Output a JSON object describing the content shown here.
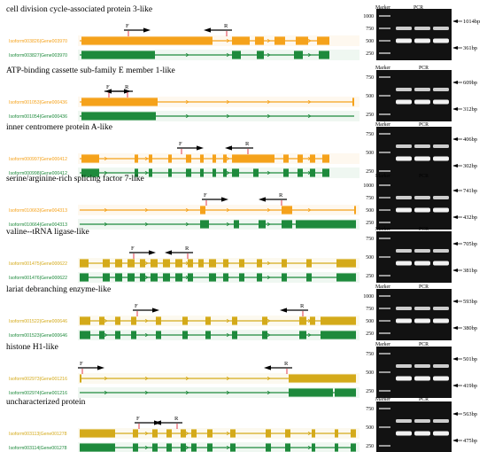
{
  "panels": [
    {
      "title": "cell division cycle-associated protein 3-like",
      "isoforms": [
        {
          "label": "Isoform003826|Gene003970",
          "color": "#f5a21b",
          "thin": [
            [
              90,
              372
            ]
          ],
          "exons": [
            [
              92,
              240
            ],
            [
              262,
              282
            ],
            [
              288,
              298
            ],
            [
              310,
              322
            ],
            [
              334,
              348
            ],
            [
              358,
              372
            ]
          ]
        },
        {
          "label": "Isoform003827|Gene003970",
          "color": "#1e8a3c",
          "thin": [
            [
              90,
              372
            ]
          ],
          "exons": [
            [
              92,
              175
            ],
            [
              262,
              272
            ],
            [
              290,
              298
            ],
            [
              332,
              342
            ],
            [
              360,
              372
            ]
          ]
        }
      ],
      "primers": {
        "F": 140,
        "R": 262
      },
      "gel": {
        "ladder": [
          "1000",
          "750",
          "500",
          "250"
        ],
        "bands": [
          "1014bp",
          "361bp"
        ]
      }
    },
    {
      "title": "ATP-binding cassette sub-family E member 1-like",
      "isoforms": [
        {
          "label": "Isoform001053|Gene000436",
          "color": "#f5a21b",
          "thin": [
            [
              90,
              400
            ]
          ],
          "exons": [
            [
              92,
              178
            ],
            [
              398,
              400
            ]
          ]
        },
        {
          "label": "Isoform001054|Gene000436",
          "color": "#1e8a3c",
          "thin": [
            [
              90,
              400
            ]
          ],
          "exons": [
            [
              92,
              176
            ]
          ]
        }
      ],
      "primers": {
        "F": 118,
        "R": 150
      },
      "gel": {
        "ladder": [
          "750",
          "500",
          "250"
        ],
        "bands": [
          "609bp",
          "312bp"
        ]
      }
    },
    {
      "title": "inner centromere protein A-like",
      "isoforms": [
        {
          "label": "Isoform000997|Gene000412",
          "color": "#f5a21b",
          "thin": [
            [
              90,
              372
            ]
          ],
          "exons": [
            [
              92,
              112
            ],
            [
              152,
              156
            ],
            [
              168,
              172
            ],
            [
              190,
              194
            ],
            [
              210,
              216
            ],
            [
              226,
              230
            ],
            [
              240,
              244
            ],
            [
              252,
              256
            ],
            [
              262,
              310
            ],
            [
              320,
              326
            ],
            [
              336,
              342
            ],
            [
              350,
              356
            ],
            [
              364,
              372
            ]
          ]
        },
        {
          "label": "Isoform000998|Gene000412",
          "color": "#1e8a3c",
          "thin": [
            [
              90,
              372
            ]
          ],
          "exons": [
            [
              92,
              112
            ],
            [
              152,
              156
            ],
            [
              168,
              172
            ],
            [
              190,
              194
            ],
            [
              210,
              216
            ],
            [
              226,
              230
            ],
            [
              240,
              244
            ],
            [
              252,
              256
            ],
            [
              262,
              270
            ],
            [
              286,
              292
            ],
            [
              320,
              326
            ],
            [
              336,
              342
            ],
            [
              350,
              356
            ],
            [
              364,
              372
            ]
          ]
        }
      ],
      "primers": {
        "F": 200,
        "R": 286
      },
      "gel": {
        "ladder": [
          "750",
          "500",
          "250"
        ],
        "bands": [
          "406bp",
          "302bp"
        ]
      }
    },
    {
      "title": "serine/arginine-rich splicing factor 7-like",
      "isoforms": [
        {
          "label": "Isoform010663|Gene004313",
          "color": "#f5a21b",
          "thin": [
            [
              90,
              402
            ]
          ],
          "exons": [
            [
              226,
              232
            ],
            [
              318,
              330
            ],
            [
              400,
              402
            ]
          ]
        },
        {
          "label": "Isoform010664|Gene004313",
          "color": "#1e8a3c",
          "thin": [
            [
              90,
              402
            ]
          ],
          "exons": [
            [
              226,
              236
            ],
            [
              264,
              270
            ],
            [
              292,
              300
            ],
            [
              318,
              330
            ],
            [
              334,
              402
            ]
          ]
        }
      ],
      "primers": {
        "F": 228,
        "R": 324
      },
      "gel": {
        "ladder": [
          "1000",
          "750",
          "500",
          "250"
        ],
        "bands": [
          "741bp",
          "432bp"
        ]
      }
    },
    {
      "title": "valine--tRNA ligase-like",
      "isoforms": [
        {
          "label": "Isoform001475|Gene000622",
          "color": "#d4aa1a",
          "thin": [
            [
              90,
              402
            ]
          ],
          "exons": [
            [
              90,
              100
            ],
            [
              116,
              124
            ],
            [
              130,
              138
            ],
            [
              144,
              152
            ],
            [
              158,
              164
            ],
            [
              170,
              178
            ],
            [
              184,
              192
            ],
            [
              198,
              206
            ],
            [
              212,
              218
            ],
            [
              224,
              230
            ],
            [
              236,
              244
            ],
            [
              252,
              258
            ],
            [
              270,
              276
            ],
            [
              290,
              296
            ],
            [
              318,
              324
            ],
            [
              346,
              352
            ],
            [
              380,
              402
            ]
          ]
        },
        {
          "label": "Isoform001476|Gene000622",
          "color": "#1e8a3c",
          "thin": [
            [
              90,
              402
            ]
          ],
          "exons": [
            [
              90,
              100
            ],
            [
              116,
              124
            ],
            [
              130,
              138
            ],
            [
              144,
              152
            ],
            [
              158,
              164
            ],
            [
              170,
              178
            ],
            [
              184,
              192
            ],
            [
              198,
              206
            ],
            [
              212,
              218
            ],
            [
              236,
              244
            ],
            [
              252,
              258
            ],
            [
              270,
              276
            ],
            [
              290,
              296
            ],
            [
              318,
              324
            ],
            [
              346,
              352
            ],
            [
              380,
              402
            ]
          ]
        }
      ],
      "primers": {
        "F": 146,
        "R": 218
      },
      "gel": {
        "ladder": [
          "750",
          "500",
          "250"
        ],
        "bands": [
          "705bp",
          "381bp"
        ]
      }
    },
    {
      "title": "lariat debranching enzyme-like",
      "isoforms": [
        {
          "label": "Isoform001522|Gene000646",
          "color": "#d4aa1a",
          "thin": [
            [
              90,
              402
            ]
          ],
          "exons": [
            [
              90,
              102
            ],
            [
              112,
              118
            ],
            [
              130,
              136
            ],
            [
              148,
              154
            ],
            [
              176,
              182
            ],
            [
              206,
              212
            ],
            [
              232,
              238
            ],
            [
              262,
              268
            ],
            [
              296,
              302
            ],
            [
              338,
              346
            ],
            [
              350,
              356
            ],
            [
              362,
              402
            ]
          ]
        },
        {
          "label": "Isoform001523|Gene000646",
          "color": "#1e8a3c",
          "thin": [
            [
              90,
              402
            ]
          ],
          "exons": [
            [
              90,
              102
            ],
            [
              112,
              118
            ],
            [
              130,
              136
            ],
            [
              148,
              154
            ],
            [
              176,
              182
            ],
            [
              206,
              212
            ],
            [
              232,
              238
            ],
            [
              262,
              268
            ],
            [
              296,
              302
            ],
            [
              338,
              346
            ],
            [
              362,
              402
            ]
          ]
        }
      ],
      "primers": {
        "F": 150,
        "R": 348
      },
      "gel": {
        "ladder": [
          "1000",
          "750",
          "500",
          "250"
        ],
        "bands": [
          "593bp",
          "380bp"
        ]
      }
    },
    {
      "title": "histone H1-like",
      "isoforms": [
        {
          "label": "Isoform002973|Gene001216",
          "color": "#d4aa1a",
          "thin": [
            [
              90,
              402
            ]
          ],
          "exons": [
            [
              90,
              92
            ],
            [
              326,
              402
            ]
          ]
        },
        {
          "label": "Isoform002974|Gene001216",
          "color": "#1e8a3c",
          "thin": [
            [
              90,
              402
            ]
          ],
          "exons": [
            [
              326,
              376
            ],
            [
              378,
              402
            ]
          ]
        }
      ],
      "primers": {
        "F": 88,
        "R": 330
      },
      "gel": {
        "ladder": [
          "750",
          "500",
          "250"
        ],
        "bands": [
          "501bp",
          "419bp"
        ]
      }
    },
    {
      "title": "uncharacterized protein",
      "isoforms": [
        {
          "label": "Isoform003113|Gene001278",
          "color": "#d4aa1a",
          "thin": [
            [
              90,
              402
            ]
          ],
          "exons": [
            [
              90,
              130
            ],
            [
              150,
              156
            ],
            [
              172,
              178
            ],
            [
              188,
              194
            ],
            [
              204,
              210
            ],
            [
              216,
              222
            ],
            [
              234,
              240
            ],
            [
              260,
              266
            ],
            [
              300,
              306
            ],
            [
              322,
              328
            ],
            [
              352,
              356
            ],
            [
              378,
              382
            ],
            [
              396,
              402
            ]
          ]
        },
        {
          "label": "Isoform003114|Gene001278",
          "color": "#1e8a3c",
          "thin": [
            [
              90,
              402
            ]
          ],
          "exons": [
            [
              90,
              130
            ],
            [
              150,
              156
            ],
            [
              172,
              178
            ],
            [
              188,
              194
            ],
            [
              204,
              210
            ],
            [
              216,
              222
            ],
            [
              234,
              240
            ],
            [
              260,
              266
            ],
            [
              300,
              306
            ],
            [
              322,
              328
            ],
            [
              352,
              356
            ],
            [
              378,
              382
            ],
            [
              396,
              402
            ]
          ]
        }
      ],
      "primers": {
        "F": 152,
        "R": 206
      },
      "gel": {
        "ladder": [
          "750",
          "500",
          "250"
        ],
        "bands": [
          "563bp",
          "475bp"
        ]
      }
    }
  ],
  "gel_header": {
    "marker": "Marker",
    "pcr": "PCR"
  },
  "primer_labels": {
    "forward": "F",
    "reverse": "R"
  }
}
